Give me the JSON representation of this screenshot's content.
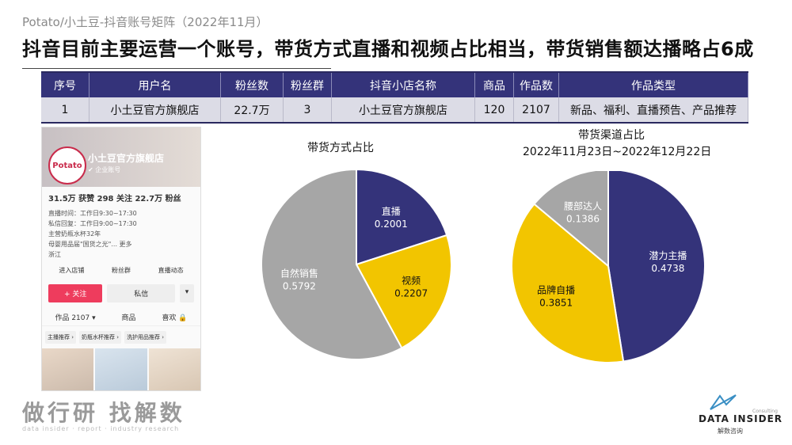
{
  "header": {
    "breadcrumb": "Potato/小土豆-抖音账号矩阵（2022年11月）",
    "headline": "抖音目前主要运营一个账号，带货方式直播和视频占比相当，带货销售额达播略占6成"
  },
  "table": {
    "columns": [
      "序号",
      "用户名",
      "粉丝数",
      "粉丝群",
      "抖音小店名称",
      "商品",
      "作品数",
      "作品类型"
    ],
    "rows": [
      [
        "1",
        "小土豆官方旗舰店",
        "22.7万",
        "3",
        "小土豆官方旗舰店",
        "120",
        "2107",
        "新品、福利、直播预告、产品推荐"
      ]
    ]
  },
  "phone": {
    "logo": "Potato",
    "shop_name": "小土豆官方旗舰店",
    "verified": "✔ 企业账号",
    "stats": "31.5万 获赞  298 关注  22.7万 粉丝",
    "lines": [
      "直播时间：工作日9:30~17:30",
      "私信回复：工作日9:00~17:30",
      "主营奶瓶水杯32年",
      "母婴用品届\"国货之光\"... 更多",
      "浙江"
    ],
    "services": [
      "进入店铺",
      "粉丝群",
      "直播动态"
    ],
    "follow": "+ 关注",
    "message": "私信",
    "more": "▾",
    "tabs": [
      "作品 2107 ▾",
      "商品",
      "喜欢 🔒"
    ],
    "chips": [
      "主播推荐 ›",
      "奶瓶水杯推荐 ›",
      "洗护用品推荐 ›"
    ]
  },
  "chart_data": [
    {
      "type": "pie",
      "title": "带货方式占比",
      "subtitle": "",
      "labels": [
        "直播",
        "视频",
        "自然销售"
      ],
      "values": [
        0.2001,
        0.2207,
        0.5792
      ],
      "colors": [
        "#34337a",
        "#f2c500",
        "#a6a6a6"
      ]
    },
    {
      "type": "pie",
      "title": "带货渠道占比",
      "subtitle": "2022年11月23日~2022年12月22日",
      "labels": [
        "潜力主播",
        "品牌自播",
        "腰部达人"
      ],
      "values": [
        0.4738,
        0.3851,
        0.1386
      ],
      "colors": [
        "#34337a",
        "#f2c500",
        "#a6a6a6"
      ]
    }
  ],
  "footer": {
    "watermark": "做行研 找解数",
    "watermark_sub": "data insider · report · industry research",
    "brand": "DATA INSIDER",
    "brand_sub": "解数咨询",
    "brand_consult": "Consulting"
  }
}
